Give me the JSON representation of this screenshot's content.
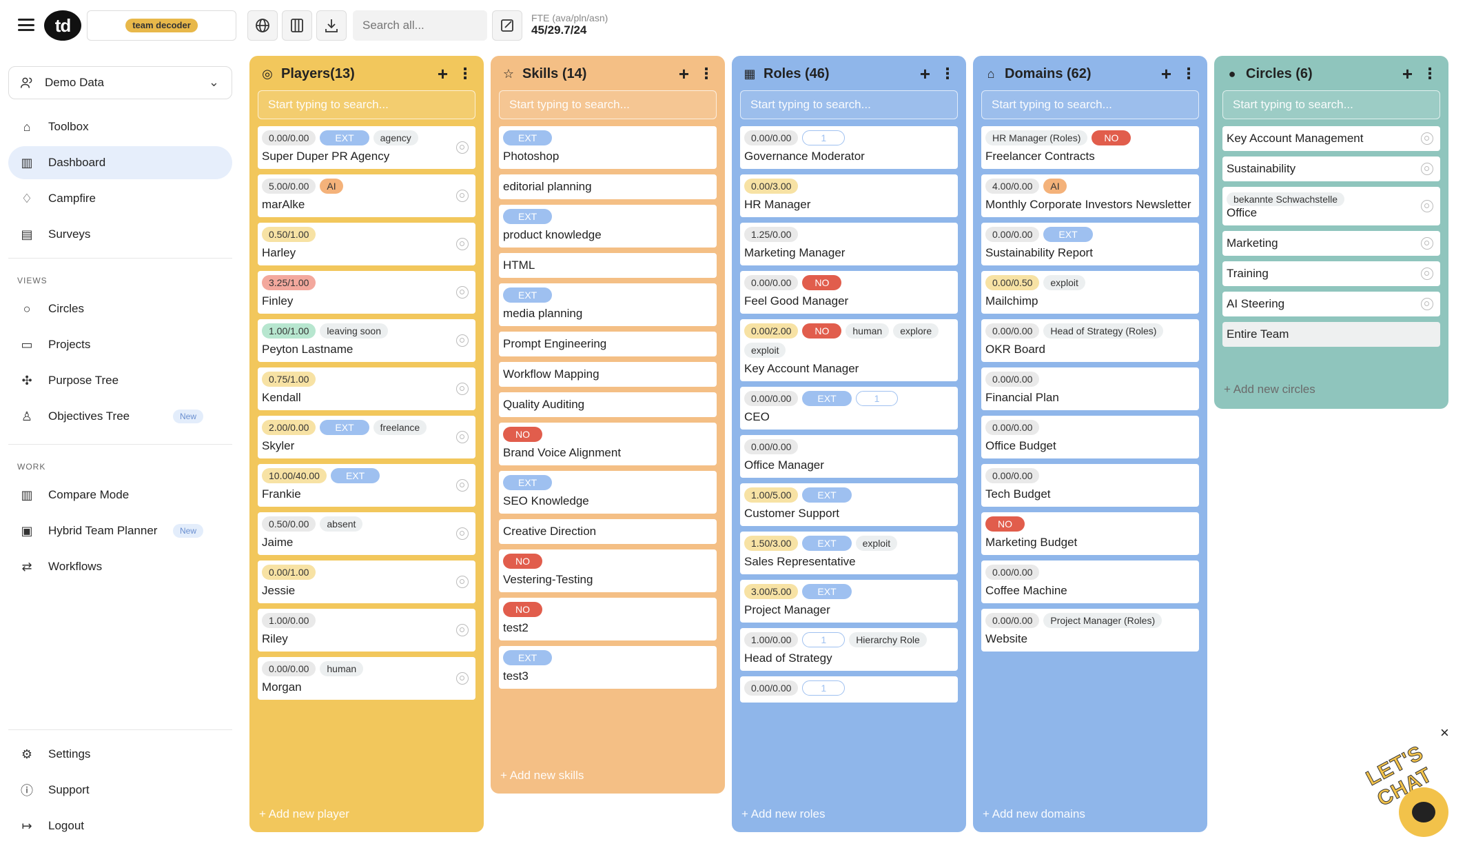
{
  "topbar": {
    "brand_text": "team decoder",
    "search_placeholder": "Search all...",
    "fte_label": "FTE (ava/pln/asn)",
    "fte_value": "45/29.7/24",
    "icons": [
      "menu-icon",
      "globe-icon",
      "columns-icon",
      "download-icon",
      "edit-icon"
    ]
  },
  "sidebar": {
    "workspace": "Demo Data",
    "main_items": [
      {
        "label": "Toolbox",
        "icon": "toolbox-icon"
      },
      {
        "label": "Dashboard",
        "icon": "dashboard-icon",
        "active": true
      },
      {
        "label": "Campfire",
        "icon": "campfire-icon"
      },
      {
        "label": "Surveys",
        "icon": "surveys-icon"
      }
    ],
    "views_label": "VIEWS",
    "views_items": [
      {
        "label": "Circles",
        "icon": "circle-icon"
      },
      {
        "label": "Projects",
        "icon": "folder-icon"
      },
      {
        "label": "Purpose Tree",
        "icon": "tree-icon"
      },
      {
        "label": "Objectives Tree",
        "icon": "objectives-icon",
        "badge": "New"
      }
    ],
    "work_label": "WORK",
    "work_items": [
      {
        "label": "Compare Mode",
        "icon": "compare-icon"
      },
      {
        "label": "Hybrid Team Planner",
        "icon": "planner-icon",
        "badge": "New"
      },
      {
        "label": "Workflows",
        "icon": "workflows-icon"
      }
    ],
    "bottom_items": [
      {
        "label": "Settings",
        "icon": "gear-icon"
      },
      {
        "label": "Support",
        "icon": "help-icon"
      },
      {
        "label": "Logout",
        "icon": "logout-icon"
      }
    ]
  },
  "columns": {
    "players": {
      "title": "Players(13)",
      "color": "#f2c75c",
      "search_placeholder": "Start typing to search...",
      "footer": "+ Add new player",
      "cards": [
        {
          "tags": [
            [
              "fte",
              "0.00/0.00"
            ],
            [
              "ext",
              "EXT"
            ],
            [
              "txt",
              "agency"
            ]
          ],
          "name": "Super Duper PR Agency"
        },
        {
          "tags": [
            [
              "fte",
              "5.00/0.00"
            ],
            [
              "ai",
              "AI"
            ]
          ],
          "name": "marAlke"
        },
        {
          "tags": [
            [
              "fte-y",
              "0.50/1.00"
            ]
          ],
          "name": "Harley"
        },
        {
          "tags": [
            [
              "fte-r",
              "3.25/1.00"
            ]
          ],
          "name": "Finley"
        },
        {
          "tags": [
            [
              "fte-g",
              "1.00/1.00"
            ],
            [
              "txt",
              "leaving soon"
            ]
          ],
          "name": "Peyton Lastname"
        },
        {
          "tags": [
            [
              "fte-y",
              "0.75/1.00"
            ]
          ],
          "name": "Kendall"
        },
        {
          "tags": [
            [
              "fte-y",
              "2.00/0.00"
            ],
            [
              "ext",
              "EXT"
            ],
            [
              "txt",
              "freelance"
            ]
          ],
          "name": "Skyler"
        },
        {
          "tags": [
            [
              "fte-y",
              "10.00/40.00"
            ],
            [
              "ext",
              "EXT"
            ]
          ],
          "name": "Frankie"
        },
        {
          "tags": [
            [
              "fte",
              "0.50/0.00"
            ],
            [
              "txt",
              "absent"
            ]
          ],
          "name": "Jaime"
        },
        {
          "tags": [
            [
              "fte-y",
              "0.00/1.00"
            ]
          ],
          "name": "Jessie"
        },
        {
          "tags": [
            [
              "fte",
              "1.00/0.00"
            ]
          ],
          "name": "Riley"
        },
        {
          "tags": [
            [
              "fte",
              "0.00/0.00"
            ],
            [
              "txt",
              "human"
            ]
          ],
          "name": "Morgan"
        }
      ]
    },
    "skills": {
      "title": "Skills (14)",
      "color": "#f4bf85",
      "search_placeholder": "Start typing to search...",
      "footer": "+ Add new skills",
      "cards": [
        {
          "tags": [
            [
              "ext",
              "EXT"
            ]
          ],
          "name": "Photoshop"
        },
        {
          "tags": [],
          "name": "editorial planning"
        },
        {
          "tags": [
            [
              "ext",
              "EXT"
            ]
          ],
          "name": "product knowledge"
        },
        {
          "tags": [],
          "name": "HTML"
        },
        {
          "tags": [
            [
              "ext",
              "EXT"
            ]
          ],
          "name": "media planning"
        },
        {
          "tags": [],
          "name": "Prompt Engineering"
        },
        {
          "tags": [],
          "name": "Workflow Mapping"
        },
        {
          "tags": [],
          "name": "Quality Auditing"
        },
        {
          "tags": [
            [
              "no",
              "NO"
            ]
          ],
          "name": "Brand Voice Alignment"
        },
        {
          "tags": [
            [
              "ext",
              "EXT"
            ]
          ],
          "name": "SEO Knowledge"
        },
        {
          "tags": [],
          "name": "Creative Direction"
        },
        {
          "tags": [
            [
              "no",
              "NO"
            ]
          ],
          "name": "Vestering-Testing"
        },
        {
          "tags": [
            [
              "no",
              "NO"
            ]
          ],
          "name": "test2"
        },
        {
          "tags": [
            [
              "ext",
              "EXT"
            ]
          ],
          "name": "test3"
        }
      ]
    },
    "roles": {
      "title": "Roles (46)",
      "color": "#8fb6ea",
      "search_placeholder": "Start typing to search...",
      "footer": "+ Add new roles",
      "cards": [
        {
          "tags": [
            [
              "fte",
              "0.00/0.00"
            ],
            [
              "outline",
              "1"
            ]
          ],
          "name": "Governance Moderator"
        },
        {
          "tags": [
            [
              "fte-y",
              "0.00/3.00"
            ]
          ],
          "name": "HR Manager"
        },
        {
          "tags": [
            [
              "fte",
              "1.25/0.00"
            ]
          ],
          "name": "Marketing Manager"
        },
        {
          "tags": [
            [
              "fte",
              "0.00/0.00"
            ],
            [
              "no",
              "NO"
            ]
          ],
          "name": "Feel Good Manager"
        },
        {
          "tags": [
            [
              "fte-y",
              "0.00/2.00"
            ],
            [
              "no",
              "NO"
            ],
            [
              "txt",
              "human"
            ],
            [
              "txt",
              "explore"
            ],
            [
              "txt",
              "exploit"
            ]
          ],
          "name": "Key Account Manager"
        },
        {
          "tags": [
            [
              "fte",
              "0.00/0.00"
            ],
            [
              "ext",
              "EXT"
            ],
            [
              "outline",
              "1"
            ]
          ],
          "name": "CEO"
        },
        {
          "tags": [
            [
              "fte",
              "0.00/0.00"
            ]
          ],
          "name": "Office Manager"
        },
        {
          "tags": [
            [
              "fte-y",
              "1.00/5.00"
            ],
            [
              "ext",
              "EXT"
            ]
          ],
          "name": "Customer Support"
        },
        {
          "tags": [
            [
              "fte-y",
              "1.50/3.00"
            ],
            [
              "ext",
              "EXT"
            ],
            [
              "txt",
              "exploit"
            ]
          ],
          "name": "Sales Representative"
        },
        {
          "tags": [
            [
              "fte-y",
              "3.00/5.00"
            ],
            [
              "ext",
              "EXT"
            ]
          ],
          "name": "Project Manager"
        },
        {
          "tags": [
            [
              "fte",
              "1.00/0.00"
            ],
            [
              "outline",
              "1"
            ],
            [
              "txt",
              "Hierarchy Role"
            ]
          ],
          "name": "Head of Strategy"
        },
        {
          "tags": [
            [
              "fte",
              "0.00/0.00"
            ],
            [
              "outline",
              "1"
            ]
          ],
          "name": ""
        }
      ]
    },
    "domains": {
      "title": "Domains (62)",
      "color": "#8fb6ea",
      "search_placeholder": "Start typing to search...",
      "footer": "+ Add new domains",
      "cards": [
        {
          "tags": [
            [
              "txt",
              "HR Manager (Roles)"
            ],
            [
              "no",
              "NO"
            ]
          ],
          "name": "Freelancer Contracts"
        },
        {
          "tags": [
            [
              "fte",
              "4.00/0.00"
            ],
            [
              "ai",
              "AI"
            ]
          ],
          "name": "Monthly Corporate Investors Newsletter"
        },
        {
          "tags": [
            [
              "fte",
              "0.00/0.00"
            ],
            [
              "ext",
              "EXT"
            ]
          ],
          "name": "Sustainability Report"
        },
        {
          "tags": [
            [
              "fte-y",
              "0.00/0.50"
            ],
            [
              "txt",
              "exploit"
            ]
          ],
          "name": "Mailchimp"
        },
        {
          "tags": [
            [
              "fte",
              "0.00/0.00"
            ],
            [
              "txt",
              "Head of Strategy (Roles)"
            ]
          ],
          "name": "OKR Board"
        },
        {
          "tags": [
            [
              "fte",
              "0.00/0.00"
            ]
          ],
          "name": "Financial Plan"
        },
        {
          "tags": [
            [
              "fte",
              "0.00/0.00"
            ]
          ],
          "name": "Office Budget"
        },
        {
          "tags": [
            [
              "fte",
              "0.00/0.00"
            ]
          ],
          "name": "Tech Budget"
        },
        {
          "tags": [
            [
              "no",
              "NO"
            ]
          ],
          "name": "Marketing Budget"
        },
        {
          "tags": [
            [
              "fte",
              "0.00/0.00"
            ]
          ],
          "name": "Coffee Machine"
        },
        {
          "tags": [
            [
              "fte",
              "0.00/0.00"
            ],
            [
              "txt",
              "Project Manager (Roles)"
            ]
          ],
          "name": "Website"
        }
      ]
    },
    "circles": {
      "title": "Circles (6)",
      "color": "#8fc5bd",
      "search_placeholder": "Start typing to search...",
      "footer": "+ Add new circles",
      "cards": [
        {
          "tags": [],
          "name": "Key Account Management"
        },
        {
          "tags": [],
          "name": "Sustainability"
        },
        {
          "tags": [
            [
              "txt",
              "bekannte Schwachstelle"
            ]
          ],
          "name": "Office"
        },
        {
          "tags": [],
          "name": "Marketing"
        },
        {
          "tags": [],
          "name": "Training"
        },
        {
          "tags": [],
          "name": "AI Steering"
        },
        {
          "tags": [],
          "name": "Entire Team",
          "entire": true
        }
      ]
    }
  },
  "chat": {
    "label": "LET'S CHAT",
    "close": "×"
  }
}
